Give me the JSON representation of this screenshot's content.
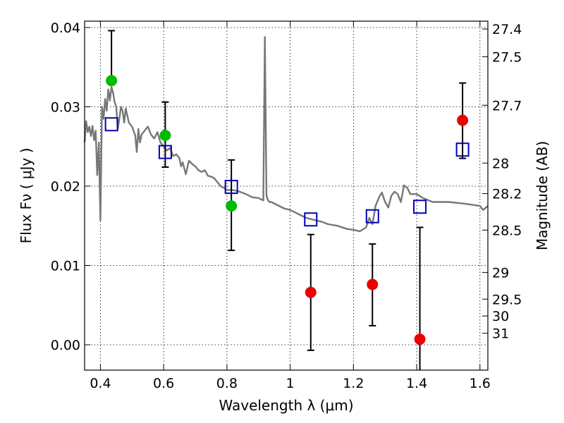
{
  "chart_data": {
    "type": "scatter",
    "title": "",
    "xlabel": "Wavelength  λ (μm)",
    "ylabel": "Flux  Fν  ( μJy )",
    "y2label": "Magnitude (AB)",
    "xlim": [
      0.35,
      1.625
    ],
    "ylim": [
      -0.0032,
      0.0408
    ],
    "grid": true,
    "x_ticks": [
      "0.4",
      "0.6",
      "0.8",
      "1",
      "1.2",
      "1.4",
      "1.6"
    ],
    "y_ticks": [
      "0.00",
      "0.01",
      "0.02",
      "0.03",
      "0.04"
    ],
    "mag_ticks": [
      "27.4",
      "27.5",
      "27.7",
      "28",
      "28.2",
      "28.5",
      "29",
      "29.5",
      "30",
      "31"
    ],
    "colors": {
      "detection": "#00bb00",
      "non_detection": "#ee0000",
      "model_photometry": "#0000bb",
      "template": "#777777",
      "errorbar": "#000000"
    },
    "series": [
      {
        "marker": "filled-circle-green",
        "x": [
          0.435,
          0.605,
          0.814
        ],
        "y": [
          0.0333,
          0.0264,
          0.0175
        ],
        "yerr_low": [
          0.0331,
          0.0224,
          0.0119
        ],
        "yerr_high": [
          0.0396,
          0.0306,
          0.0233
        ]
      },
      {
        "marker": "filled-circle-red",
        "x": [
          1.065,
          1.26,
          1.41,
          1.545
        ],
        "y": [
          0.0066,
          0.0076,
          0.0007,
          0.0283
        ],
        "yerr_low": [
          -0.0007,
          0.0024,
          -0.0032,
          0.0235
        ],
        "yerr_high": [
          0.0139,
          0.0127,
          0.0148,
          0.033
        ]
      },
      {
        "marker": "open-square-blue",
        "x": [
          0.435,
          0.605,
          0.814,
          1.065,
          1.26,
          1.41,
          1.545
        ],
        "y": [
          0.0278,
          0.0243,
          0.0199,
          0.0158,
          0.0162,
          0.0174,
          0.0246
        ]
      },
      {
        "marker": "line-gray",
        "x": [
          0.35,
          0.355,
          0.36,
          0.365,
          0.37,
          0.375,
          0.38,
          0.385,
          0.39,
          0.395,
          0.4,
          0.405,
          0.41,
          0.415,
          0.42,
          0.425,
          0.43,
          0.435,
          0.44,
          0.445,
          0.45,
          0.455,
          0.46,
          0.465,
          0.47,
          0.475,
          0.48,
          0.49,
          0.5,
          0.51,
          0.515,
          0.52,
          0.525,
          0.53,
          0.54,
          0.55,
          0.56,
          0.57,
          0.58,
          0.59,
          0.6,
          0.61,
          0.62,
          0.63,
          0.64,
          0.65,
          0.655,
          0.66,
          0.67,
          0.68,
          0.69,
          0.7,
          0.71,
          0.72,
          0.73,
          0.74,
          0.75,
          0.76,
          0.77,
          0.78,
          0.79,
          0.8,
          0.82,
          0.84,
          0.86,
          0.88,
          0.9,
          0.915,
          0.92,
          0.925,
          0.93,
          0.935,
          0.94,
          0.96,
          0.98,
          1.0,
          1.02,
          1.05,
          1.08,
          1.1,
          1.12,
          1.15,
          1.18,
          1.2,
          1.22,
          1.24,
          1.25,
          1.26,
          1.27,
          1.28,
          1.29,
          1.3,
          1.31,
          1.32,
          1.33,
          1.34,
          1.35,
          1.36,
          1.37,
          1.38,
          1.4,
          1.42,
          1.45,
          1.5,
          1.55,
          1.6,
          1.61,
          1.625
        ],
        "y": [
          0.0255,
          0.0282,
          0.0268,
          0.0275,
          0.0263,
          0.0276,
          0.0258,
          0.027,
          0.0214,
          0.0255,
          0.0157,
          0.03,
          0.0285,
          0.031,
          0.0295,
          0.0322,
          0.0308,
          0.0325,
          0.0318,
          0.0306,
          0.03,
          0.0272,
          0.0285,
          0.03,
          0.0295,
          0.028,
          0.0298,
          0.028,
          0.0275,
          0.0264,
          0.0243,
          0.0272,
          0.0255,
          0.0265,
          0.027,
          0.0275,
          0.0265,
          0.026,
          0.0268,
          0.0255,
          0.025,
          0.0245,
          0.0248,
          0.0238,
          0.024,
          0.0235,
          0.0225,
          0.023,
          0.0215,
          0.0232,
          0.0228,
          0.0225,
          0.022,
          0.0218,
          0.022,
          0.0213,
          0.0212,
          0.021,
          0.0205,
          0.02,
          0.0198,
          0.0195,
          0.0195,
          0.0193,
          0.019,
          0.0186,
          0.0185,
          0.0182,
          0.0388,
          0.0188,
          0.0182,
          0.018,
          0.018,
          0.0176,
          0.0172,
          0.017,
          0.0166,
          0.016,
          0.0157,
          0.0155,
          0.0152,
          0.015,
          0.0146,
          0.0145,
          0.0143,
          0.0148,
          0.016,
          0.0152,
          0.0175,
          0.0185,
          0.0192,
          0.018,
          0.0173,
          0.0188,
          0.0193,
          0.019,
          0.018,
          0.0201,
          0.0198,
          0.019,
          0.019,
          0.0185,
          0.018,
          0.018,
          0.0178,
          0.0175,
          0.017,
          0.0175
        ]
      }
    ]
  }
}
